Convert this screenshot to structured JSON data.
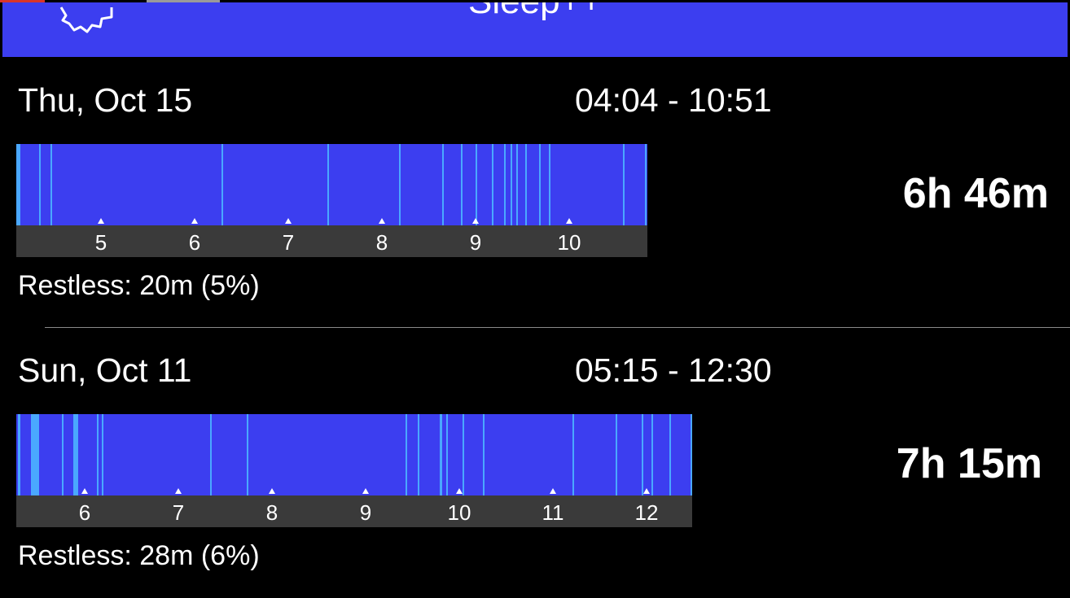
{
  "header": {
    "title": "Sleep++"
  },
  "entries": [
    {
      "date": "Thu, Oct 15",
      "time_range": "04:04 - 10:51",
      "duration": "6h 46m",
      "hour_ticks": [
        "5",
        "6",
        "7",
        "8",
        "9",
        "10"
      ],
      "restless": "Restless: 20m (5%)"
    },
    {
      "date": "Sun, Oct 11",
      "time_range": "05:15 - 12:30",
      "duration": "7h 15m",
      "hour_ticks": [
        "6",
        "7",
        "8",
        "9",
        "10",
        "11",
        "12"
      ],
      "restless": "Restless: 28m (6%)"
    }
  ]
}
